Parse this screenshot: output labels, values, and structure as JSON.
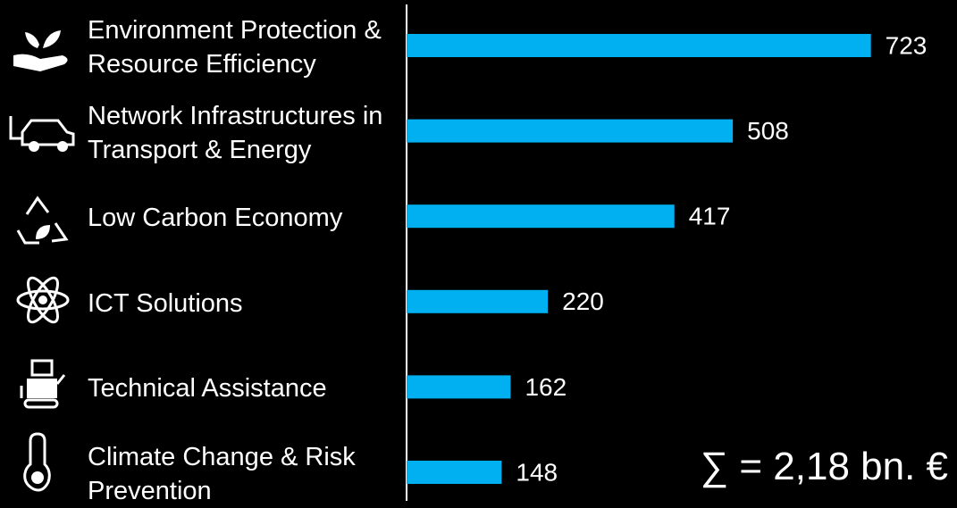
{
  "chart_data": {
    "type": "bar",
    "orientation": "horizontal",
    "categories": [
      "Environment Protection & Resource Efficiency",
      "Network Infrastructures in Transport & Energy",
      "Low Carbon Economy",
      "ICT Solutions",
      "Technical Assistance",
      "Climate Change & Risk Prevention"
    ],
    "values": [
      723,
      508,
      417,
      220,
      162,
      148
    ],
    "color": "#00b0f0",
    "xlim": [
      0,
      800
    ],
    "annotation": "∑ = 2,18 bn. €"
  }
}
